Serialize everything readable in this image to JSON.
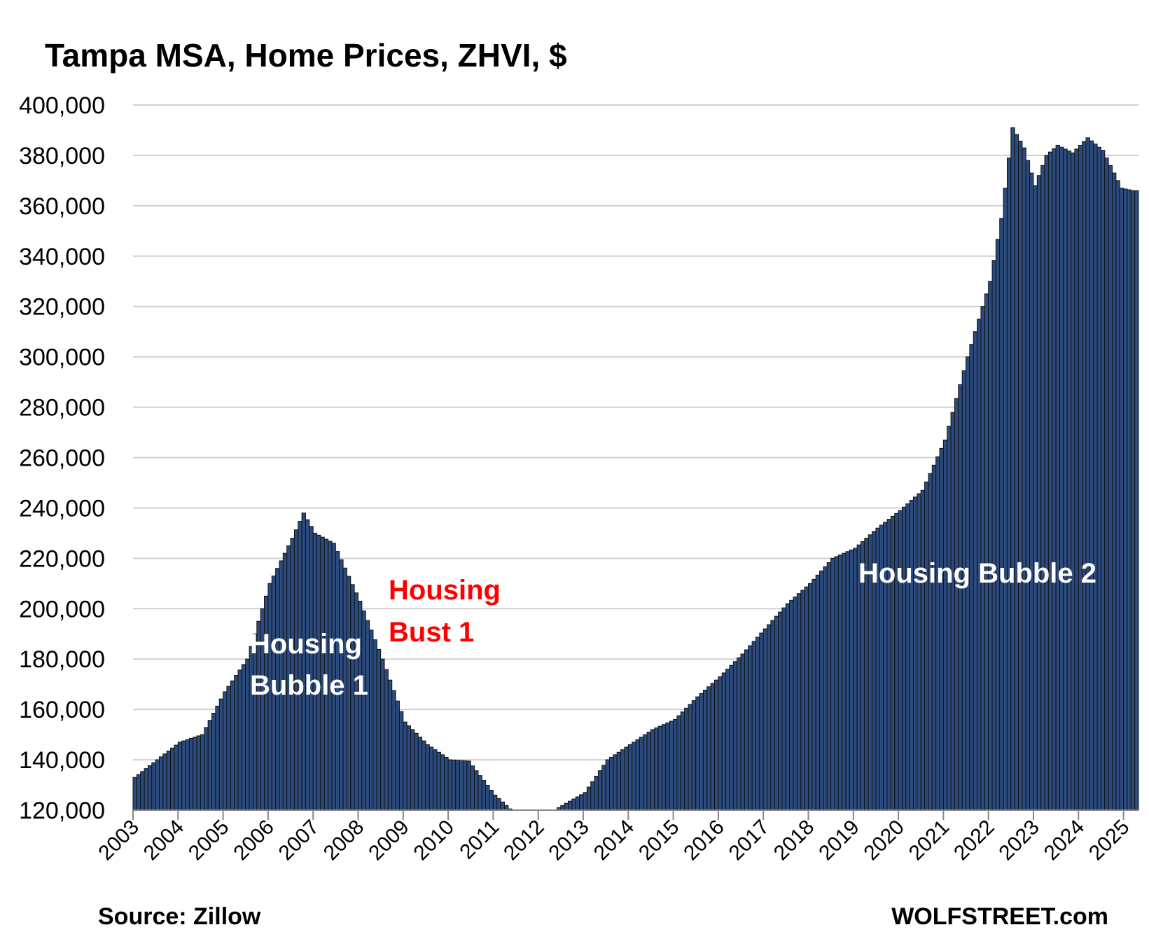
{
  "chart_data": {
    "type": "bar",
    "title": "Tampa MSA, Home Prices, ZHVI, $",
    "xlabel": "",
    "ylabel": "",
    "ylim": [
      120000,
      400000
    ],
    "y_ticks": [
      120000,
      140000,
      160000,
      180000,
      200000,
      220000,
      240000,
      260000,
      280000,
      300000,
      320000,
      340000,
      360000,
      380000,
      400000
    ],
    "y_tick_labels": [
      "120,000",
      "140,000",
      "160,000",
      "180,000",
      "200,000",
      "220,000",
      "240,000",
      "260,000",
      "280,000",
      "300,000",
      "320,000",
      "340,000",
      "360,000",
      "380,000",
      "400,000"
    ],
    "x_tick_labels": [
      "2003",
      "2004",
      "2005",
      "2006",
      "2007",
      "2008",
      "2009",
      "2010",
      "2011",
      "2012",
      "2013",
      "2014",
      "2015",
      "2016",
      "2017",
      "2018",
      "2019",
      "2020",
      "2021",
      "2022",
      "2023",
      "2024",
      "2025"
    ],
    "grid": true,
    "bar_color": "#2b4a7d",
    "bar_edge_color": "#111111",
    "anchors": [
      {
        "date": "2003-01",
        "value": 133000
      },
      {
        "date": "2003-07",
        "value": 140000
      },
      {
        "date": "2004-01",
        "value": 147000
      },
      {
        "date": "2004-07",
        "value": 150000
      },
      {
        "date": "2005-01",
        "value": 167000
      },
      {
        "date": "2005-07",
        "value": 180000
      },
      {
        "date": "2006-01",
        "value": 210000
      },
      {
        "date": "2006-07",
        "value": 228000
      },
      {
        "date": "2006-10",
        "value": 238000
      },
      {
        "date": "2007-01",
        "value": 230000
      },
      {
        "date": "2007-06",
        "value": 226000
      },
      {
        "date": "2008-01",
        "value": 203000
      },
      {
        "date": "2008-07",
        "value": 180000
      },
      {
        "date": "2009-01",
        "value": 155000
      },
      {
        "date": "2009-07",
        "value": 146000
      },
      {
        "date": "2010-01",
        "value": 140000
      },
      {
        "date": "2010-06",
        "value": 139500
      },
      {
        "date": "2011-01",
        "value": 126000
      },
      {
        "date": "2011-05",
        "value": 120500
      },
      {
        "date": "2011-06",
        "value": 120000
      },
      {
        "date": "2012-05",
        "value": 120000
      },
      {
        "date": "2012-06",
        "value": 121000
      },
      {
        "date": "2013-01",
        "value": 127000
      },
      {
        "date": "2013-07",
        "value": 140000
      },
      {
        "date": "2014-01",
        "value": 146000
      },
      {
        "date": "2014-07",
        "value": 152000
      },
      {
        "date": "2015-01",
        "value": 156000
      },
      {
        "date": "2015-07",
        "value": 165000
      },
      {
        "date": "2016-01",
        "value": 173000
      },
      {
        "date": "2016-07",
        "value": 182000
      },
      {
        "date": "2017-01",
        "value": 192000
      },
      {
        "date": "2017-07",
        "value": 202000
      },
      {
        "date": "2018-01",
        "value": 210000
      },
      {
        "date": "2018-07",
        "value": 220000
      },
      {
        "date": "2019-01",
        "value": 224000
      },
      {
        "date": "2019-07",
        "value": 232000
      },
      {
        "date": "2020-01",
        "value": 239000
      },
      {
        "date": "2020-07",
        "value": 247000
      },
      {
        "date": "2021-01",
        "value": 267000
      },
      {
        "date": "2021-07",
        "value": 300000
      },
      {
        "date": "2022-01",
        "value": 330000
      },
      {
        "date": "2022-04",
        "value": 355000
      },
      {
        "date": "2022-07",
        "value": 391000
      },
      {
        "date": "2022-10",
        "value": 383000
      },
      {
        "date": "2023-01",
        "value": 368000
      },
      {
        "date": "2023-04",
        "value": 380000
      },
      {
        "date": "2023-07",
        "value": 384000
      },
      {
        "date": "2023-11",
        "value": 381000
      },
      {
        "date": "2024-03",
        "value": 387000
      },
      {
        "date": "2024-07",
        "value": 382000
      },
      {
        "date": "2024-12",
        "value": 367000
      },
      {
        "date": "2025-03",
        "value": 366000
      }
    ],
    "annotations": [
      {
        "text_lines": [
          "Housing",
          "Bubble 1"
        ],
        "color": "#ffffff"
      },
      {
        "text_lines": [
          "Housing",
          "Bust 1"
        ],
        "color": "#ff0000"
      },
      {
        "text_lines": [
          "Housing Bubble 2"
        ],
        "color": "#ffffff"
      }
    ]
  },
  "footer": {
    "source": "Source: Zillow",
    "brand": "WOLFSTREET.com"
  }
}
